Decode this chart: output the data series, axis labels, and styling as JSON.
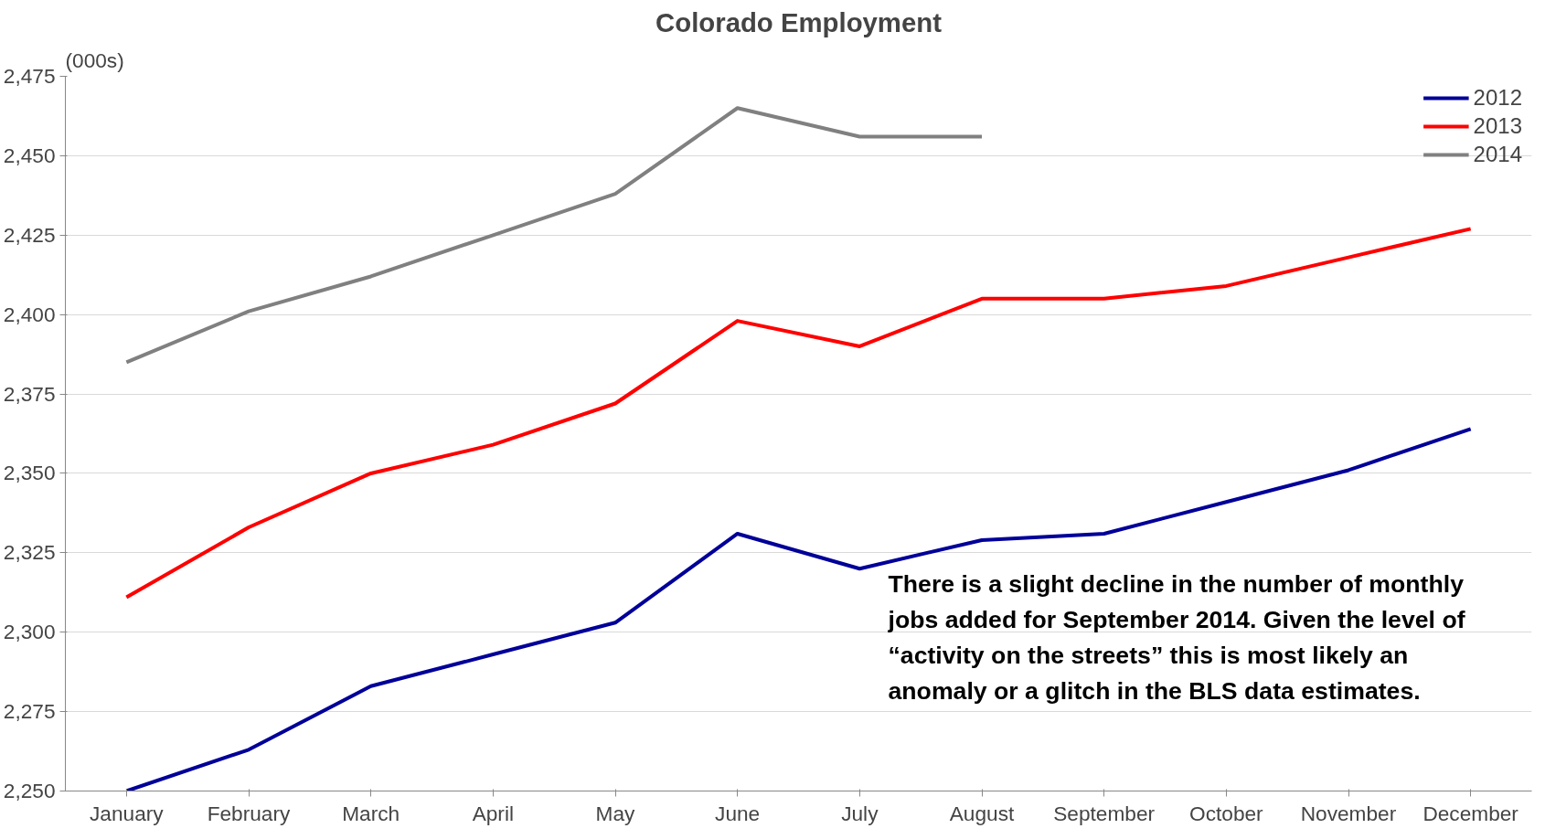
{
  "chart_data": {
    "type": "line",
    "title": "Colorado Employment",
    "ylabel": "(000s)",
    "categories": [
      "January",
      "February",
      "March",
      "April",
      "May",
      "June",
      "July",
      "August",
      "September",
      "October",
      "November",
      "December"
    ],
    "series": [
      {
        "name": "2012",
        "color": "#000099",
        "values": [
          2250,
          2263,
          2283,
          2293,
          2303,
          2331,
          2320,
          2329,
          2331,
          2341,
          2351,
          2364
        ]
      },
      {
        "name": "2013",
        "color": "#ff0000",
        "values": [
          2311,
          2333,
          2350,
          2359,
          2372,
          2398,
          2390,
          2405,
          2405,
          2409,
          2418,
          2427
        ]
      },
      {
        "name": "2014",
        "color": "#808080",
        "values": [
          2385,
          2401,
          2412,
          2425,
          2438,
          2465,
          2456,
          2456,
          null,
          null,
          null,
          null
        ]
      }
    ],
    "ylim": [
      2250,
      2475
    ],
    "yticks": [
      {
        "value": 2250,
        "label": "2,250"
      },
      {
        "value": 2275,
        "label": "2,275"
      },
      {
        "value": 2300,
        "label": "2,300"
      },
      {
        "value": 2325,
        "label": "2,325"
      },
      {
        "value": 2350,
        "label": "2,350"
      },
      {
        "value": 2375,
        "label": "2,375"
      },
      {
        "value": 2400,
        "label": "2,400"
      },
      {
        "value": 2425,
        "label": "2,425"
      },
      {
        "value": 2450,
        "label": "2,450"
      },
      {
        "value": 2475,
        "label": "2,475"
      }
    ],
    "grid": "y",
    "legend": "top right",
    "marker": "none",
    "line_style": "solid",
    "annotations": [
      "There is a slight decline in the number of monthly jobs added for September 2014.  Given the level of “activity on the streets” this is most likely an anomaly or a glitch in the BLS data estimates."
    ]
  }
}
